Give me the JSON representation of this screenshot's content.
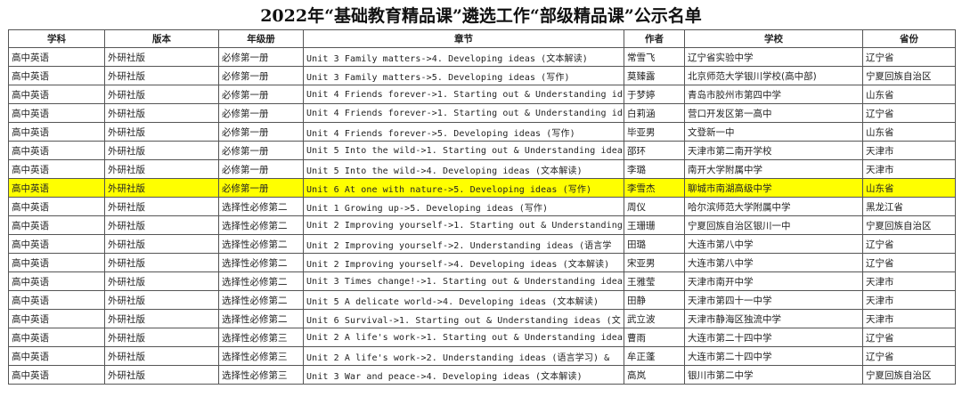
{
  "title": "2022年“基础教育精品课”遴选工作“部级精品课”公示名单",
  "table": {
    "headers": [
      "学科",
      "版本",
      "年级册",
      "章节",
      "作者",
      "学校",
      "省份"
    ],
    "rows": [
      [
        "高中英语",
        "外研社版",
        "必修第一册",
        "Unit 3 Family matters->4. Developing ideas (文本解读)",
        "常雪飞",
        "辽宁省实验中学",
        "辽宁省"
      ],
      [
        "高中英语",
        "外研社版",
        "必修第一册",
        "Unit 3 Family matters->5. Developing ideas (写作)",
        "莫臻露",
        "北京师范大学银川学校(高中部)",
        "宁夏回族自治区"
      ],
      [
        "高中英语",
        "外研社版",
        "必修第一册",
        "Unit 4 Friends forever->1. Starting out & Understanding id",
        "于梦婷",
        "青岛市胶州市第四中学",
        "山东省"
      ],
      [
        "高中英语",
        "外研社版",
        "必修第一册",
        "Unit 4 Friends forever->1. Starting out & Understanding id",
        "白莉涵",
        "营口开发区第一高中",
        "辽宁省"
      ],
      [
        "高中英语",
        "外研社版",
        "必修第一册",
        "Unit 4 Friends forever->5. Developing ideas (写作)",
        "毕亚男",
        "文登新一中",
        "山东省"
      ],
      [
        "高中英语",
        "外研社版",
        "必修第一册",
        "Unit 5 Into the wild->1. Starting out & Understanding idea",
        "邵环",
        "天津市第二南开学校",
        "天津市"
      ],
      [
        "高中英语",
        "外研社版",
        "必修第一册",
        "Unit 5 Into the wild->4. Developing ideas (文本解读)",
        "李璐",
        "南开大学附属中学",
        "天津市"
      ],
      [
        "高中英语",
        "外研社版",
        "必修第一册",
        "Unit 6 At one with nature->5. Developing ideas (写作)",
        "李雪杰",
        "聊城市南湖高级中学",
        "山东省"
      ],
      [
        "高中英语",
        "外研社版",
        "选择性必修第二",
        "Unit 1 Growing up->5. Developing ideas (写作)",
        "周仪",
        "哈尔滨师范大学附属中学",
        "黑龙江省"
      ],
      [
        "高中英语",
        "外研社版",
        "选择性必修第二",
        "Unit 2 Improving yourself->1. Starting out & Understanding",
        "王珊珊",
        "宁夏回族自治区银川一中",
        "宁夏回族自治区"
      ],
      [
        "高中英语",
        "外研社版",
        "选择性必修第二",
        "Unit 2 Improving yourself->2. Understanding ideas (语言学",
        "田璐",
        "大连市第八中学",
        "辽宁省"
      ],
      [
        "高中英语",
        "外研社版",
        "选择性必修第二",
        "Unit 2 Improving yourself->4. Developing ideas (文本解读)",
        "宋亚男",
        "大连市第八中学",
        "辽宁省"
      ],
      [
        "高中英语",
        "外研社版",
        "选择性必修第二",
        "Unit 3 Times change!->1. Starting out & Understanding idea",
        "王雅莹",
        "天津市南开中学",
        "天津市"
      ],
      [
        "高中英语",
        "外研社版",
        "选择性必修第二",
        "Unit 5 A delicate world->4. Developing ideas (文本解读)",
        "田静",
        "天津市第四十一中学",
        "天津市"
      ],
      [
        "高中英语",
        "外研社版",
        "选择性必修第二",
        "Unit 6 Survival->1. Starting out & Understanding ideas (文",
        "武立波",
        "天津市静海区独流中学",
        "天津市"
      ],
      [
        "高中英语",
        "外研社版",
        "选择性必修第三",
        "Unit 2 A life's work->1. Starting out & Understanding idea",
        "曹雨",
        "大连市第二十四中学",
        "辽宁省"
      ],
      [
        "高中英语",
        "外研社版",
        "选择性必修第三",
        "Unit 2 A life's work->2. Understanding ideas (语言学习) &",
        "牟正蓬",
        "大连市第二十四中学",
        "辽宁省"
      ],
      [
        "高中英语",
        "外研社版",
        "选择性必修第三",
        "Unit 3 War and peace->4. Developing ideas (文本解读)",
        "高岚",
        "银川市第二中学",
        "宁夏回族自治区"
      ]
    ],
    "highlight": {
      "row": 7,
      "color": "#ffff00"
    }
  }
}
